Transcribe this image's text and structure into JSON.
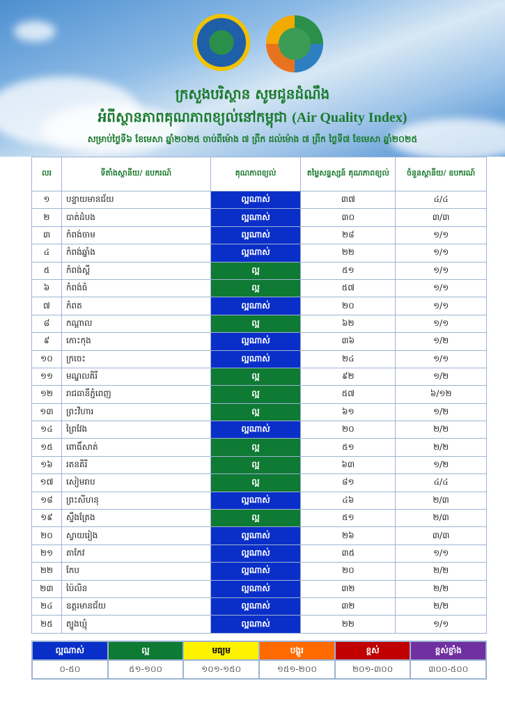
{
  "header": {
    "title_line1": "ក្រសួងបរិស្ថាន សូមជូនដំណឹង",
    "title_line2_km": "អំពីស្ថានភាពគុណភាពខ្យល់នៅកម្ពុជា",
    "title_line2_en": "(Air Quality Index)",
    "subtitle": "សម្រាប់ថ្ងៃទី៦ ខែមេសា ឆ្នាំ២០២៥ ចាប់ពីម៉ោង ៧ ព្រឹក ដល់ម៉ោង ៧ ព្រឹក ថ្ងៃទី៧ ខែមេសា ឆ្នាំ២០២៥"
  },
  "table": {
    "columns": [
      "លរ",
      "ទីតាំងស្ថានីយ/ ឧបករណ៍",
      "គុណភាពខ្យល់",
      "តម្លៃសន្ទស្សន៍ គុណភាពខ្យល់",
      "ចំនួនស្ថានីយ/ ឧបករណ៍"
    ],
    "rows": [
      [
        "១",
        "បន្ទាយមានជ័យ",
        "ល្អណាស់",
        "៣៧",
        "៤/៤"
      ],
      [
        "២",
        "បាត់ដំបង",
        "ល្អណាស់",
        "៣០",
        "៣/៣"
      ],
      [
        "៣",
        "កំពង់ចាម",
        "ល្អណាស់",
        "២៨",
        "១/១"
      ],
      [
        "៤",
        "កំពង់ឆ្នាំង",
        "ល្អណាស់",
        "២២",
        "១/១"
      ],
      [
        "៥",
        "កំពង់ស្ពឺ",
        "ល្អ",
        "៥១",
        "១/១"
      ],
      [
        "៦",
        "កំពង់ធំ",
        "ល្អ",
        "៥៧",
        "១/១"
      ],
      [
        "៧",
        "កំពត",
        "ល្អណាស់",
        "២០",
        "១/១"
      ],
      [
        "៨",
        "កណ្ដាល",
        "ល្អ",
        "៦២",
        "១/១"
      ],
      [
        "៩",
        "កោះកុង",
        "ល្អណាស់",
        "៣៦",
        "១/២"
      ],
      [
        "១០",
        "ក្រចេះ",
        "ល្អណាស់",
        "២៤",
        "១/១"
      ],
      [
        "១១",
        "មណ្ឌលគិរី",
        "ល្អ",
        "៩២",
        "១/២"
      ],
      [
        "១២",
        "រាជធានីភ្នំពេញ",
        "ល្អ",
        "៥៧",
        "៦/១២"
      ],
      [
        "១៣",
        "ព្រះវិហារ",
        "ល្អ",
        "៦១",
        "១/២"
      ],
      [
        "១៤",
        "ព្រៃវែង",
        "ល្អណាស់",
        "២០",
        "២/២"
      ],
      [
        "១៥",
        "ពោធិ៍សាត់",
        "ល្អ",
        "៥១",
        "២/២"
      ],
      [
        "១៦",
        "រតនគិរី",
        "ល្អ",
        "៦៣",
        "១/២"
      ],
      [
        "១៧",
        "សៀមរាប",
        "ល្អ",
        "៨១",
        "៤/៤"
      ],
      [
        "១៨",
        "ព្រះសីហនុ",
        "ល្អណាស់",
        "៤៦",
        "២/៣"
      ],
      [
        "១៩",
        "ស្ទឹងត្រែង",
        "ល្អ",
        "៥១",
        "២/៣"
      ],
      [
        "២០",
        "ស្វាយរៀង",
        "ល្អណាស់",
        "២៦",
        "៣/៣"
      ],
      [
        "២១",
        "តាកែវ",
        "ល្អណាស់",
        "៣៥",
        "១/១"
      ],
      [
        "២២",
        "កែប",
        "ល្អណាស់",
        "២០",
        "២/២"
      ],
      [
        "២៣",
        "ប៉ៃលិន",
        "ល្អណាស់",
        "៣២",
        "២/២"
      ],
      [
        "២៤",
        "ឧត្ដរមានជ័យ",
        "ល្អណាស់",
        "៣២",
        "២/២"
      ],
      [
        "២៥",
        "ត្បូងឃ្មុំ",
        "ល្អណាស់",
        "២២",
        "១/១"
      ]
    ]
  },
  "legend": [
    {
      "label": "ល្អណាស់",
      "range": "០-៥០",
      "color": "#0a2fc9",
      "text": "#fff"
    },
    {
      "label": "ល្អ",
      "range": "៥១-១០០",
      "color": "#0f7a33",
      "text": "#fff"
    },
    {
      "label": "មធ្យម",
      "range": "១០១-១៥០",
      "color": "#fff200",
      "text": "#000"
    },
    {
      "label": "បង្គួរ",
      "range": "១៥១-២០០",
      "color": "#ff6a00",
      "text": "#fff"
    },
    {
      "label": "ខ្ពស់",
      "range": "២០១-៣០០",
      "color": "#c00000",
      "text": "#fff"
    },
    {
      "label": "ខ្ពស់ខ្លាំង",
      "range": "៣០០-៥០០",
      "color": "#7030a0",
      "text": "#fff"
    }
  ]
}
